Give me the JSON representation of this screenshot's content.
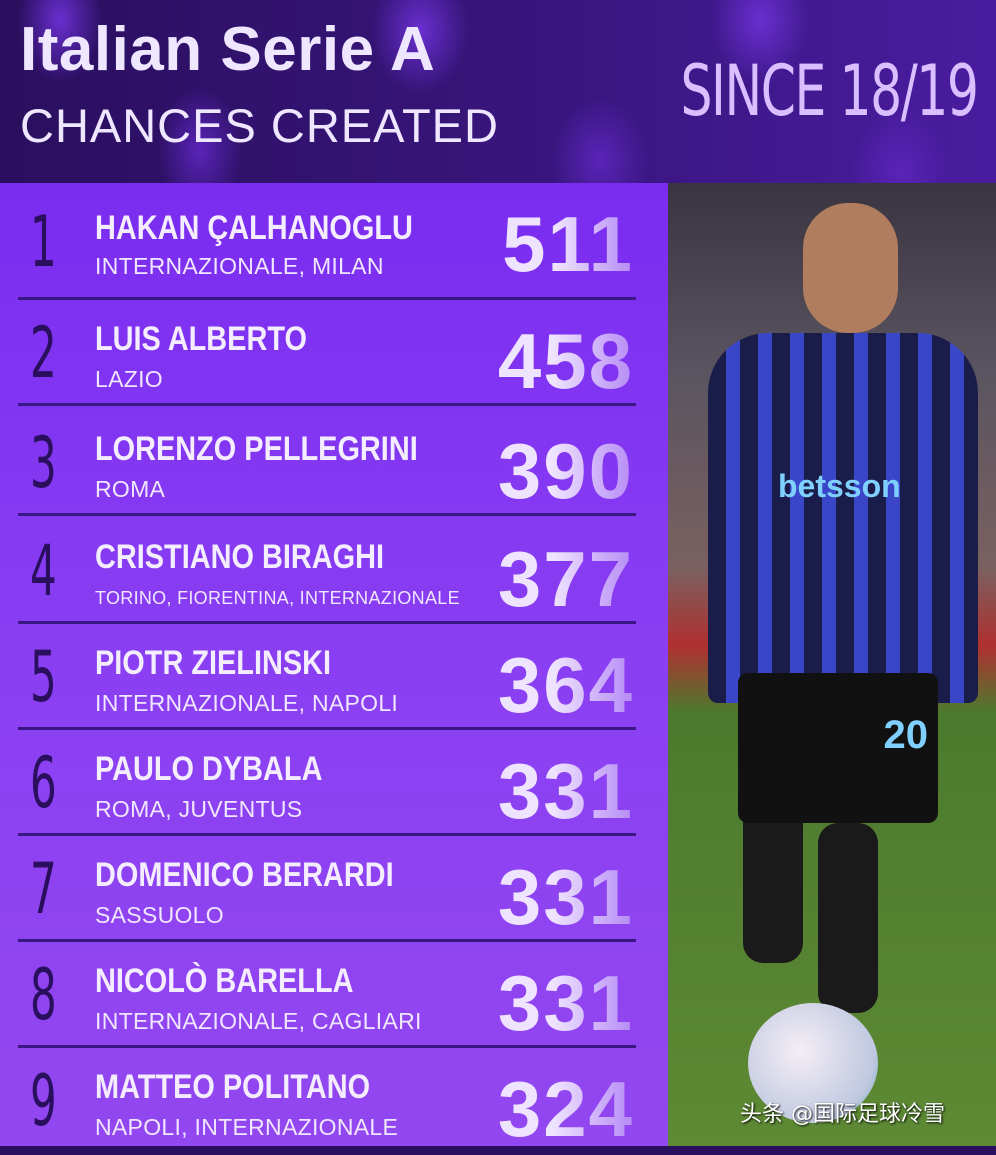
{
  "header": {
    "title": "Italian Serie A",
    "subtitle": "CHANCES CREATED",
    "period": "SINCE 18/19"
  },
  "rows": [
    {
      "rank": "1",
      "name": "HAKAN ÇALHANOGLU",
      "clubs": "INTERNAZIONALE, MILAN",
      "value": "511"
    },
    {
      "rank": "2",
      "name": "LUIS ALBERTO",
      "clubs": "LAZIO",
      "value": "458"
    },
    {
      "rank": "3",
      "name": "LORENZO PELLEGRINI",
      "clubs": "ROMA",
      "value": "390"
    },
    {
      "rank": "4",
      "name": "CRISTIANO BIRAGHI",
      "clubs": "TORINO, FIORENTINA, INTERNAZIONALE",
      "value": "377"
    },
    {
      "rank": "5",
      "name": "PIOTR ZIELINSKI",
      "clubs": "INTERNAZIONALE, NAPOLI",
      "value": "364"
    },
    {
      "rank": "6",
      "name": "PAULO DYBALA",
      "clubs": "ROMA, JUVENTUS",
      "value": "331"
    },
    {
      "rank": "7",
      "name": "DOMENICO BERARDI",
      "clubs": "SASSUOLO",
      "value": "331"
    },
    {
      "rank": "8",
      "name": "NICOLÒ BARELLA",
      "clubs": "INTERNAZIONALE, CAGLIARI",
      "value": "331"
    },
    {
      "rank": "9",
      "name": "MATTEO POLITANO",
      "clubs": "NAPOLI, INTERNAZIONALE",
      "value": "324"
    }
  ],
  "photo": {
    "jersey_sponsor": "betsson",
    "jersey_number": "20"
  },
  "watermark": "头条 @国际足球冷雪",
  "colors": {
    "header_bg": "#2a0f5e",
    "list_bg": "#7a2cf0",
    "text": "#f4ecff",
    "rank": "#2a0f5e"
  }
}
